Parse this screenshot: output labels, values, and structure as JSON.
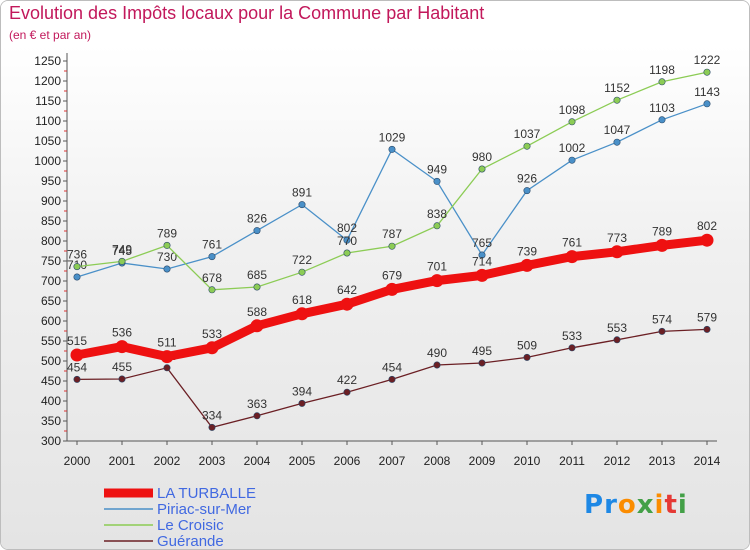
{
  "title": "Evolution des Impôts locaux pour la Commune par Habitant",
  "subtitle": "(en € et par an)",
  "logo": {
    "text": "Proxiti",
    "letter_colors": [
      "#1e88e5",
      "#1e88e5",
      "#fb8c00",
      "#43a047",
      "#fb8c00",
      "#e53935",
      "#43a047"
    ]
  },
  "chart_data": {
    "type": "line",
    "x": [
      2000,
      2001,
      2002,
      2003,
      2004,
      2005,
      2006,
      2007,
      2008,
      2009,
      2010,
      2011,
      2012,
      2013,
      2014
    ],
    "ylim": [
      300,
      1250
    ],
    "yticks": [
      300,
      350,
      400,
      450,
      500,
      550,
      600,
      650,
      700,
      750,
      800,
      850,
      900,
      950,
      1000,
      1050,
      1100,
      1150,
      1200,
      1250
    ],
    "xlabel": "",
    "ylabel": "",
    "grid": false,
    "legend_position": "bottom-left",
    "series": [
      {
        "name": "Piriac-sur-Mer",
        "color": "#4a90c8",
        "legend_color": "#4169e1",
        "emphasis": false,
        "values": [
          710,
          745,
          730,
          761,
          826,
          891,
          802,
          1029,
          949,
          765,
          926,
          1002,
          1047,
          1103,
          1143
        ]
      },
      {
        "name": "Le Croisic",
        "color": "#8ccc55",
        "legend_color": "#4169e1",
        "emphasis": false,
        "values": [
          736,
          749,
          789,
          678,
          685,
          722,
          770,
          787,
          838,
          980,
          1037,
          1098,
          1152,
          1198,
          1222
        ]
      },
      {
        "name": "Guérande",
        "color": "#6b1f24",
        "legend_color": "#4169e1",
        "emphasis": false,
        "values": [
          454,
          455,
          483,
          334,
          363,
          394,
          422,
          454,
          490,
          495,
          509,
          533,
          553,
          574,
          579
        ]
      },
      {
        "name": "LA TURBALLE",
        "color": "#ee1111",
        "legend_color": "#4169e1",
        "emphasis": true,
        "values": [
          515,
          536,
          511,
          533,
          588,
          618,
          642,
          679,
          701,
          714,
          739,
          761,
          773,
          789,
          802
        ]
      }
    ],
    "legend_order": [
      "LA TURBALLE",
      "Piriac-sur-Mer",
      "Le Croisic",
      "Guérande"
    ]
  }
}
